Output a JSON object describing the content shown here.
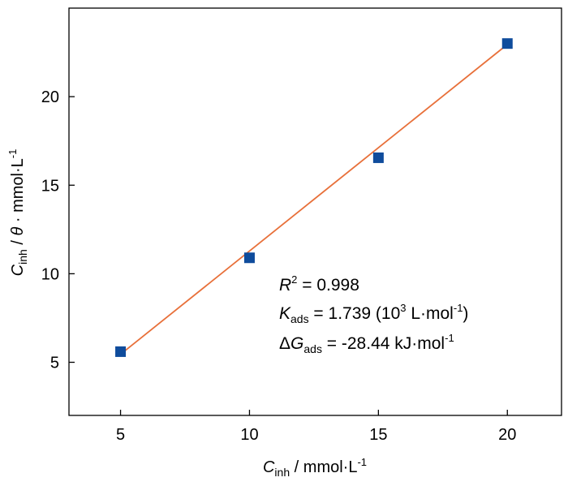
{
  "chart_data": {
    "type": "scatter",
    "x": [
      5,
      10,
      15,
      20
    ],
    "y": [
      5.6,
      10.9,
      16.55,
      23.0
    ],
    "fit_line": {
      "x": [
        5,
        20
      ],
      "y": [
        5.45,
        22.95
      ]
    },
    "xlim": [
      3.0,
      22.1
    ],
    "ylim": [
      2.0,
      25.0
    ],
    "x_ticks": [
      5,
      10,
      15,
      20
    ],
    "y_ticks": [
      5,
      10,
      15,
      20
    ],
    "xlabel": {
      "main": "C",
      "sub": "inh",
      "rest": " / mmol·L",
      "sup": "-1"
    },
    "ylabel": {
      "main": "C",
      "sub": "inh",
      "rest1": " / ",
      "theta": "θ",
      "rest2": " · mmol·L",
      "sup": "-1"
    },
    "annotations": {
      "r2": {
        "main": "R",
        "sup": "2",
        "rest": " = 0.998"
      },
      "kads": {
        "main": "K",
        "sub": "ads",
        "rest1": " = 1.739 (10",
        "sup": "3",
        "rest2": " L·mol",
        "sup2": "-1",
        "rest3": ")"
      },
      "dg": {
        "delta": "Δ",
        "main": "G",
        "sub": "ads",
        "rest": " = -28.44 kJ·mol",
        "sup": "-1"
      }
    },
    "colors": {
      "marker": "#0F4C9C",
      "line": "#E8703A",
      "axis": "#000000"
    }
  }
}
